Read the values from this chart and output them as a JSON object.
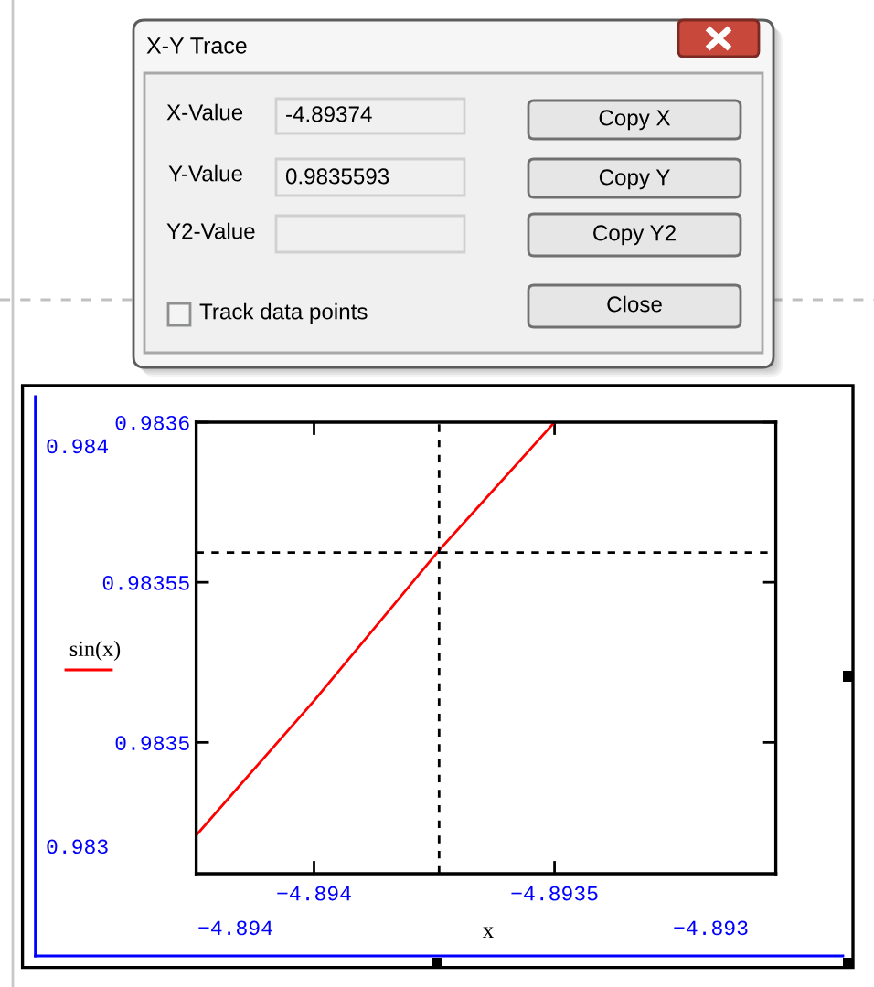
{
  "chart_data": [
    {
      "type": "other",
      "title": "X-Y Trace",
      "annotations": [
        "X-Value",
        "-4.89374",
        "Y-Value",
        "0.9835593",
        "Y2-Value",
        "Copy X",
        "Copy Y",
        "Copy Y2",
        "Track data points",
        "Close"
      ]
    },
    {
      "type": "line",
      "xlabel": "x",
      "series": [
        {
          "name": "sin(x)",
          "color": "#ff0000",
          "x": [
            -4.894245,
            -4.894,
            -4.89374,
            -4.8935
          ],
          "values": [
            0.983471,
            0.983513,
            0.98356,
            0.9836
          ]
        }
      ],
      "xlim": [
        -4.894245,
        -4.89304
      ],
      "ylim": [
        0.983459,
        0.9836
      ],
      "xticks": [
        {
          "value": -4.894,
          "label": "−4.894"
        },
        {
          "value": -4.8935,
          "label": "−4.8935"
        }
      ],
      "yticks": [
        0.9835,
        0.98355,
        0.9836
      ],
      "ref_lines": [
        {
          "axis": "x",
          "value": -4.89374,
          "color": "#000000",
          "line_style": "dashed"
        },
        {
          "axis": "y",
          "value": 0.9835593,
          "color": "#000000",
          "line_style": "dashed"
        }
      ],
      "annotations": [
        "0.984",
        "0.983",
        "−4.894",
        "−4.893"
      ],
      "legend": "left"
    }
  ]
}
